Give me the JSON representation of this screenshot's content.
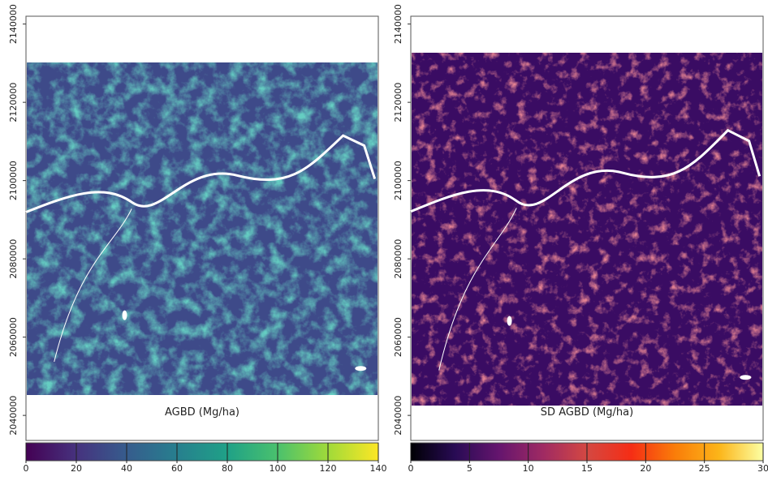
{
  "chart_data": [
    {
      "type": "map",
      "xlabel": "AGBD (Mg/ha)",
      "ylim": [
        2033600,
        2142000
      ],
      "yticks": [
        2040000,
        2060000,
        2080000,
        2100000,
        2120000,
        2140000
      ],
      "colormap": "viridis",
      "clim": [
        0,
        140
      ],
      "cticks": [
        0,
        20,
        40,
        60,
        80,
        100,
        120,
        140
      ]
    },
    {
      "type": "map",
      "xlabel": "SD AGBD (Mg/ha)",
      "ylim": [
        2033600,
        2142000
      ],
      "yticks": [
        2040000,
        2060000,
        2080000,
        2100000,
        2120000,
        2140000
      ],
      "colormap": "inferno",
      "clim": [
        0,
        30
      ],
      "cticks": [
        0,
        5,
        10,
        15,
        20,
        25,
        30
      ]
    }
  ]
}
